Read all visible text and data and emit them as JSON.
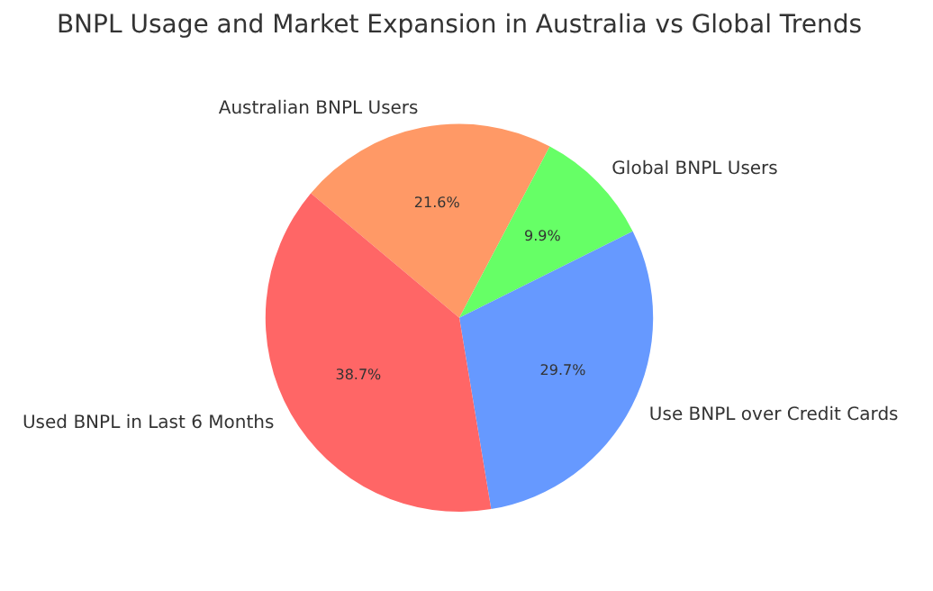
{
  "chart_data": {
    "type": "pie",
    "title": "BNPL Usage and Market Expansion in Australia vs Global Trends",
    "categories": [
      "Australian BNPL Users",
      "Global BNPL Users",
      "Use BNPL over Credit Cards",
      "Used BNPL in Last 6 Months"
    ],
    "values": [
      21.6,
      9.9,
      29.7,
      38.7
    ],
    "colors": [
      "#ff9966",
      "#66ff66",
      "#6699ff",
      "#ff6666"
    ],
    "value_labels": [
      "21.6%",
      "9.9%",
      "29.7%",
      "38.7%"
    ],
    "legend": false
  }
}
